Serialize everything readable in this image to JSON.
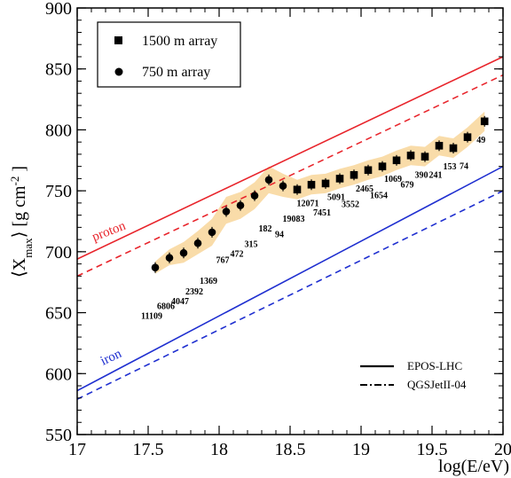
{
  "chart_data": {
    "type": "scatter",
    "xlabel": "log(E/eV)",
    "ylabel_parts": {
      "left": "⟨X",
      "sub": "max",
      "mid": "⟩ [g cm",
      "sup": "-2",
      "right": " ]"
    },
    "xlim": [
      17,
      20
    ],
    "ylim": [
      550,
      900
    ],
    "xticks": [
      "17",
      "17.5",
      "18",
      "18.5",
      "19",
      "19.5",
      "20"
    ],
    "yticks": [
      "550",
      "600",
      "650",
      "700",
      "750",
      "800",
      "850",
      "900"
    ],
    "grid": false,
    "legend": {
      "placement": "top-left",
      "entries": [
        "1500 m array",
        "750 m array"
      ]
    },
    "model_legend": {
      "placement": "bottom-right",
      "entries": [
        "EPOS-LHC",
        "QGSJetII-04"
      ]
    },
    "colors": {
      "proton": "#e8242b",
      "iron": "#1f2fd0",
      "band": "#f9dca9",
      "markers": "#000000"
    },
    "model_lines": [
      {
        "label": "proton",
        "model": "EPOS-LHC",
        "style": "solid",
        "color": "#e8242b",
        "x": [
          17,
          20
        ],
        "y": [
          694,
          860
        ]
      },
      {
        "label": "",
        "model": "QGSJetII-04",
        "style": "dashed",
        "color": "#e8242b",
        "x": [
          17,
          20
        ],
        "y": [
          680,
          845
        ]
      },
      {
        "label": "iron",
        "model": "EPOS-LHC",
        "style": "solid",
        "color": "#1f2fd0",
        "x": [
          17,
          20
        ],
        "y": [
          586,
          770
        ]
      },
      {
        "label": "",
        "model": "QGSJetII-04",
        "style": "dashed",
        "color": "#1f2fd0",
        "x": [
          17,
          20
        ],
        "y": [
          579,
          750
        ]
      }
    ],
    "line_labels": {
      "proton": "proton",
      "iron": "iron"
    },
    "series": [
      {
        "name": "750 m array",
        "marker": "circle",
        "points": [
          {
            "x": 17.55,
            "y": 687,
            "n": "11109"
          },
          {
            "x": 17.65,
            "y": 695,
            "n": "6806"
          },
          {
            "x": 17.75,
            "y": 699,
            "n": "4047"
          },
          {
            "x": 17.85,
            "y": 707,
            "n": "2392"
          },
          {
            "x": 17.95,
            "y": 716,
            "n": "1369"
          },
          {
            "x": 18.05,
            "y": 733,
            "n": "767"
          },
          {
            "x": 18.15,
            "y": 738,
            "n": "472"
          },
          {
            "x": 18.25,
            "y": 746,
            "n": "315"
          },
          {
            "x": 18.35,
            "y": 759,
            "n": "182"
          },
          {
            "x": 18.45,
            "y": 754,
            "n": "94"
          }
        ]
      },
      {
        "name": "1500 m array",
        "marker": "square",
        "points": [
          {
            "x": 18.55,
            "y": 751,
            "n": "19083"
          },
          {
            "x": 18.65,
            "y": 755,
            "n": "12071"
          },
          {
            "x": 18.75,
            "y": 756,
            "n": "7451"
          },
          {
            "x": 18.85,
            "y": 760,
            "n": "5091"
          },
          {
            "x": 18.95,
            "y": 763,
            "n": "3552"
          },
          {
            "x": 19.05,
            "y": 767,
            "n": "2465"
          },
          {
            "x": 19.15,
            "y": 770,
            "n": "1654"
          },
          {
            "x": 19.25,
            "y": 775,
            "n": "1069"
          },
          {
            "x": 19.35,
            "y": 779,
            "n": "679"
          },
          {
            "x": 19.45,
            "y": 778,
            "n": "390"
          },
          {
            "x": 19.55,
            "y": 787,
            "n": "241"
          },
          {
            "x": 19.65,
            "y": 785,
            "n": "153"
          },
          {
            "x": 19.75,
            "y": 794,
            "n": "74"
          },
          {
            "x": 19.87,
            "y": 807,
            "n": "49"
          }
        ]
      }
    ],
    "systematic_band": [
      {
        "x": 17.55,
        "lo": 682,
        "hi": 692
      },
      {
        "x": 17.65,
        "lo": 689,
        "hi": 702
      },
      {
        "x": 17.75,
        "lo": 691,
        "hi": 708
      },
      {
        "x": 17.85,
        "lo": 698,
        "hi": 717
      },
      {
        "x": 17.95,
        "lo": 705,
        "hi": 727
      },
      {
        "x": 18.05,
        "lo": 723,
        "hi": 745
      },
      {
        "x": 18.15,
        "lo": 727,
        "hi": 749
      },
      {
        "x": 18.25,
        "lo": 735,
        "hi": 757
      },
      {
        "x": 18.35,
        "lo": 748,
        "hi": 770
      },
      {
        "x": 18.45,
        "lo": 745,
        "hi": 764
      },
      {
        "x": 18.55,
        "lo": 743,
        "hi": 759
      },
      {
        "x": 18.65,
        "lo": 747,
        "hi": 763
      },
      {
        "x": 18.75,
        "lo": 748,
        "hi": 764
      },
      {
        "x": 18.85,
        "lo": 752,
        "hi": 768
      },
      {
        "x": 18.95,
        "lo": 755,
        "hi": 771
      },
      {
        "x": 19.05,
        "lo": 759,
        "hi": 775
      },
      {
        "x": 19.15,
        "lo": 762,
        "hi": 778
      },
      {
        "x": 19.25,
        "lo": 767,
        "hi": 783
      },
      {
        "x": 19.35,
        "lo": 771,
        "hi": 787
      },
      {
        "x": 19.45,
        "lo": 770,
        "hi": 786
      },
      {
        "x": 19.55,
        "lo": 779,
        "hi": 795
      },
      {
        "x": 19.65,
        "lo": 777,
        "hi": 793
      },
      {
        "x": 19.75,
        "lo": 786,
        "hi": 802
      },
      {
        "x": 19.87,
        "lo": 799,
        "hi": 815
      }
    ]
  }
}
